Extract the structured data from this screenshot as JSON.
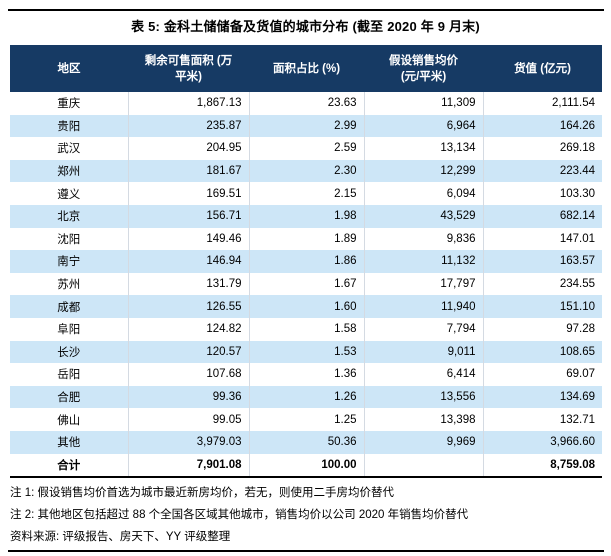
{
  "title": "表 5: 金科土储储备及货值的城市分布 (截至 2020 年 9 月末)",
  "table": {
    "headers": [
      {
        "line1": "地区",
        "line2": ""
      },
      {
        "line1": "剩余可售面积 (万",
        "line2": "平米)"
      },
      {
        "line1": "面积占比 (%)",
        "line2": ""
      },
      {
        "line1": "假设销售均价",
        "line2": "(元/平米)"
      },
      {
        "line1": "货值 (亿元)",
        "line2": ""
      }
    ],
    "rows": [
      {
        "region": "重庆",
        "area": "1,867.13",
        "share": "23.63",
        "price": "11,309",
        "value": "2,111.54"
      },
      {
        "region": "贵阳",
        "area": "235.87",
        "share": "2.99",
        "price": "6,964",
        "value": "164.26"
      },
      {
        "region": "武汉",
        "area": "204.95",
        "share": "2.59",
        "price": "13,134",
        "value": "269.18"
      },
      {
        "region": "郑州",
        "area": "181.67",
        "share": "2.30",
        "price": "12,299",
        "value": "223.44"
      },
      {
        "region": "遵义",
        "area": "169.51",
        "share": "2.15",
        "price": "6,094",
        "value": "103.30"
      },
      {
        "region": "北京",
        "area": "156.71",
        "share": "1.98",
        "price": "43,529",
        "value": "682.14"
      },
      {
        "region": "沈阳",
        "area": "149.46",
        "share": "1.89",
        "price": "9,836",
        "value": "147.01"
      },
      {
        "region": "南宁",
        "area": "146.94",
        "share": "1.86",
        "price": "11,132",
        "value": "163.57"
      },
      {
        "region": "苏州",
        "area": "131.79",
        "share": "1.67",
        "price": "17,797",
        "value": "234.55"
      },
      {
        "region": "成都",
        "area": "126.55",
        "share": "1.60",
        "price": "11,940",
        "value": "151.10"
      },
      {
        "region": "阜阳",
        "area": "124.82",
        "share": "1.58",
        "price": "7,794",
        "value": "97.28"
      },
      {
        "region": "长沙",
        "area": "120.57",
        "share": "1.53",
        "price": "9,011",
        "value": "108.65"
      },
      {
        "region": "岳阳",
        "area": "107.68",
        "share": "1.36",
        "price": "6,414",
        "value": "69.07"
      },
      {
        "region": "合肥",
        "area": "99.36",
        "share": "1.26",
        "price": "13,556",
        "value": "134.69"
      },
      {
        "region": "佛山",
        "area": "99.05",
        "share": "1.25",
        "price": "13,398",
        "value": "132.71"
      },
      {
        "region": "其他",
        "area": "3,979.03",
        "share": "50.36",
        "price": "9,969",
        "value": "3,966.60"
      }
    ],
    "total": {
      "region": "合计",
      "area": "7,901.08",
      "share": "100.00",
      "price": "",
      "value": "8,759.08"
    }
  },
  "notes": [
    "注 1: 假设销售均价首选为城市最近新房均价，若无，则使用二手房均价替代",
    "注 2: 其他地区包括超过 88 个全国各区域其他城市，销售均价以公司 2020 年销售均价替代"
  ],
  "source": "资料来源: 评级报告、房天下、YY 评级整理",
  "colors": {
    "header_bg": "#163A64",
    "header_text": "#FFFFFF",
    "stripe_bg": "#CDE6F7",
    "divider": "#D4DAE2",
    "rule": "#000000"
  }
}
